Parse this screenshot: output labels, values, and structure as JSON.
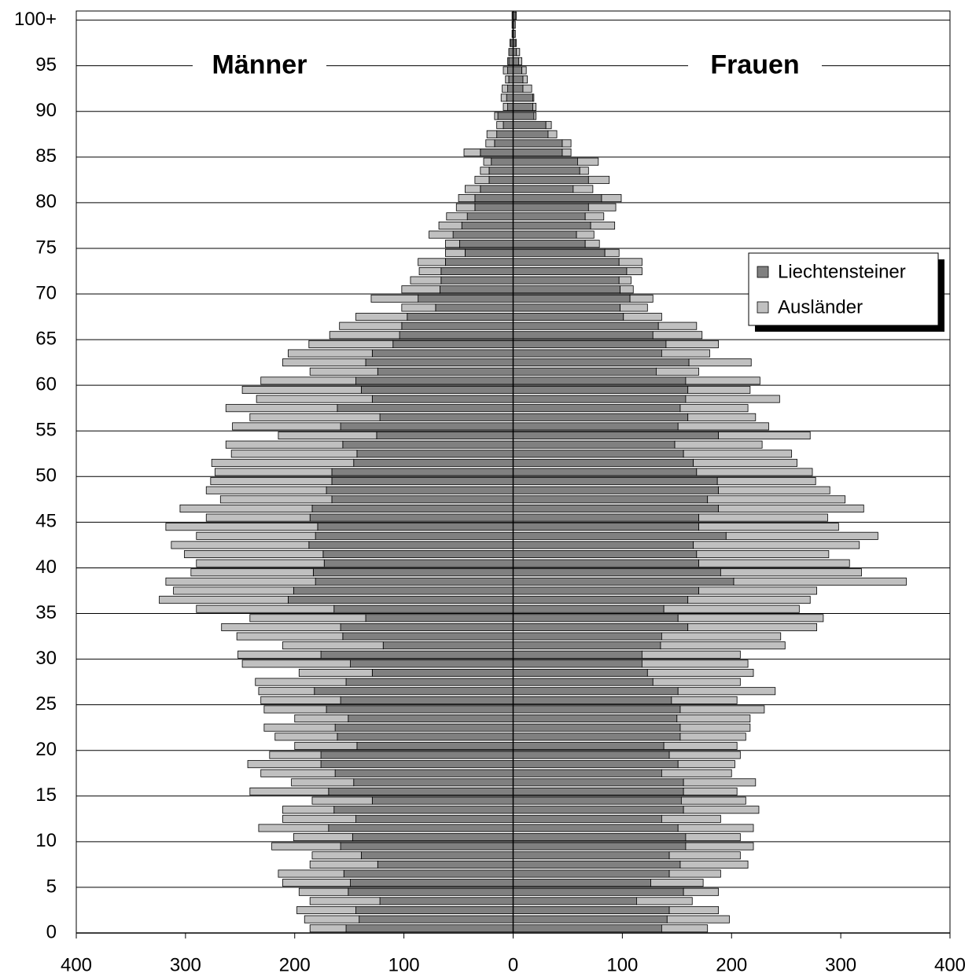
{
  "chart_data": {
    "type": "pyramid",
    "sides": [
      "Männer",
      "Frauen"
    ],
    "categories": [
      "0",
      null,
      null,
      null,
      null,
      "5",
      null,
      null,
      null,
      null,
      "10",
      null,
      null,
      null,
      null,
      "15",
      null,
      null,
      null,
      null,
      "20",
      null,
      null,
      null,
      null,
      "25",
      null,
      null,
      null,
      null,
      "30",
      null,
      null,
      null,
      null,
      "35",
      null,
      null,
      null,
      null,
      "40",
      null,
      null,
      null,
      null,
      "45",
      null,
      null,
      null,
      null,
      "50",
      null,
      null,
      null,
      null,
      "55",
      null,
      null,
      null,
      null,
      "60",
      null,
      null,
      null,
      null,
      "65",
      null,
      null,
      null,
      null,
      "70",
      null,
      null,
      null,
      null,
      "75",
      null,
      null,
      null,
      null,
      "80",
      null,
      null,
      null,
      null,
      "85",
      null,
      null,
      null,
      null,
      "90",
      null,
      null,
      null,
      null,
      "95",
      null,
      null,
      null,
      null,
      "100+"
    ],
    "series": [
      {
        "name": "Liechtensteiner",
        "color": "#808080",
        "values": [
          [
            153,
            141,
            144,
            122,
            151,
            149,
            155,
            124,
            139,
            158,
            147,
            169,
            144,
            164,
            129,
            169,
            146,
            163,
            176,
            176,
            143,
            161,
            163,
            151,
            171,
            158,
            182,
            153,
            129,
            149,
            176,
            119,
            156,
            158,
            135,
            164,
            206,
            201,
            181,
            183,
            173,
            174,
            187,
            181,
            179,
            186,
            184,
            166,
            171,
            166,
            166,
            146,
            143,
            156,
            125,
            158,
            122,
            161,
            129,
            139,
            144,
            124,
            135,
            129,
            110,
            104,
            102,
            97,
            71,
            87,
            67,
            66,
            66,
            62,
            44,
            49,
            55,
            47,
            42,
            35,
            35,
            30,
            22,
            22,
            20,
            30,
            17,
            15,
            9,
            14,
            5,
            6,
            5,
            4,
            5,
            4,
            4,
            2,
            1,
            1,
            1
          ],
          [
            136,
            141,
            143,
            113,
            156,
            126,
            143,
            153,
            143,
            158,
            158,
            151,
            136,
            156,
            154,
            156,
            156,
            136,
            151,
            143,
            138,
            153,
            153,
            150,
            153,
            145,
            151,
            128,
            123,
            118,
            118,
            135,
            136,
            160,
            151,
            138,
            160,
            170,
            202,
            190,
            170,
            168,
            165,
            195,
            170,
            170,
            188,
            178,
            188,
            187,
            168,
            165,
            156,
            148,
            188,
            151,
            160,
            153,
            158,
            160,
            158,
            131,
            161,
            136,
            140,
            128,
            133,
            101,
            98,
            107,
            98,
            97,
            104,
            97,
            84,
            66,
            58,
            71,
            66,
            69,
            81,
            55,
            69,
            61,
            59,
            45,
            45,
            32,
            30,
            19,
            18,
            18,
            9,
            9,
            8,
            5,
            3,
            2,
            2,
            2,
            2
          ]
        ]
      },
      {
        "name": "Ausländer",
        "color": "#c0c0c0",
        "values": [
          [
            33,
            50,
            54,
            64,
            45,
            62,
            60,
            62,
            45,
            63,
            54,
            64,
            67,
            47,
            55,
            72,
            57,
            68,
            67,
            47,
            57,
            57,
            65,
            49,
            57,
            73,
            51,
            83,
            67,
            99,
            76,
            92,
            97,
            109,
            106,
            126,
            118,
            110,
            137,
            112,
            117,
            127,
            126,
            109,
            139,
            95,
            121,
            102,
            110,
            111,
            107,
            130,
            115,
            107,
            90,
            99,
            119,
            102,
            106,
            109,
            87,
            62,
            76,
            77,
            77,
            64,
            57,
            47,
            31,
            43,
            35,
            28,
            20,
            25,
            18,
            13,
            22,
            21,
            19,
            17,
            15,
            14,
            13,
            8,
            7,
            15,
            8,
            9,
            6,
            3,
            4,
            5,
            5,
            3,
            4,
            1,
            0,
            1,
            0,
            0,
            0
          ],
          [
            42,
            57,
            45,
            51,
            32,
            48,
            47,
            62,
            65,
            62,
            50,
            69,
            54,
            69,
            59,
            49,
            66,
            64,
            52,
            65,
            67,
            60,
            64,
            67,
            77,
            60,
            89,
            80,
            97,
            97,
            90,
            114,
            109,
            118,
            133,
            124,
            112,
            108,
            158,
            129,
            138,
            121,
            152,
            139,
            128,
            118,
            133,
            126,
            102,
            90,
            106,
            95,
            99,
            80,
            84,
            83,
            62,
            62,
            86,
            57,
            68,
            39,
            57,
            44,
            48,
            45,
            35,
            35,
            25,
            21,
            12,
            11,
            14,
            21,
            13,
            13,
            16,
            22,
            17,
            25,
            18,
            18,
            19,
            8,
            19,
            8,
            8,
            8,
            5,
            2,
            3,
            1,
            8,
            4,
            4,
            3,
            3,
            1,
            0,
            0,
            1
          ]
        ]
      }
    ],
    "xlim": [
      -400,
      400
    ],
    "xticks": [
      {
        "value": -400,
        "label": "400"
      },
      {
        "value": -300,
        "label": "300"
      },
      {
        "value": -200,
        "label": "200"
      },
      {
        "value": -100,
        "label": "100"
      },
      0,
      100,
      200,
      300,
      400
    ],
    "grid": true,
    "legend": "upper right"
  }
}
